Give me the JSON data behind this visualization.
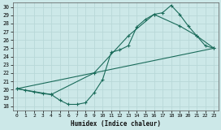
{
  "xlabel": "Humidex (Indice chaleur)",
  "bg_color": "#cce8e8",
  "grid_color": "#b0d4d4",
  "line_color": "#1a6b5a",
  "xlim": [
    -0.5,
    23.5
  ],
  "ylim": [
    17.5,
    30.5
  ],
  "xticks": [
    0,
    1,
    2,
    3,
    4,
    5,
    6,
    7,
    8,
    9,
    10,
    11,
    12,
    13,
    14,
    15,
    16,
    17,
    18,
    19,
    20,
    21,
    22,
    23
  ],
  "yticks": [
    18,
    19,
    20,
    21,
    22,
    23,
    24,
    25,
    26,
    27,
    28,
    29,
    30
  ],
  "series1_x": [
    0,
    1,
    2,
    3,
    4,
    5,
    6,
    7,
    8,
    9,
    10,
    11,
    12,
    13,
    14,
    15,
    16,
    17,
    18,
    19,
    20,
    21,
    22,
    23
  ],
  "series1_y": [
    20.1,
    19.9,
    19.7,
    19.5,
    19.4,
    18.7,
    18.2,
    18.2,
    18.4,
    19.6,
    21.2,
    24.5,
    24.8,
    25.3,
    27.6,
    28.5,
    29.1,
    29.3,
    30.2,
    29.1,
    27.7,
    26.5,
    25.3,
    25.0
  ],
  "series2_x": [
    0,
    23
  ],
  "series2_y": [
    20.1,
    25.0
  ],
  "series3_x": [
    0,
    4,
    9,
    13,
    16,
    19,
    21,
    23
  ],
  "series3_y": [
    20.1,
    19.4,
    22.0,
    26.5,
    29.1,
    27.7,
    26.5,
    25.0
  ]
}
